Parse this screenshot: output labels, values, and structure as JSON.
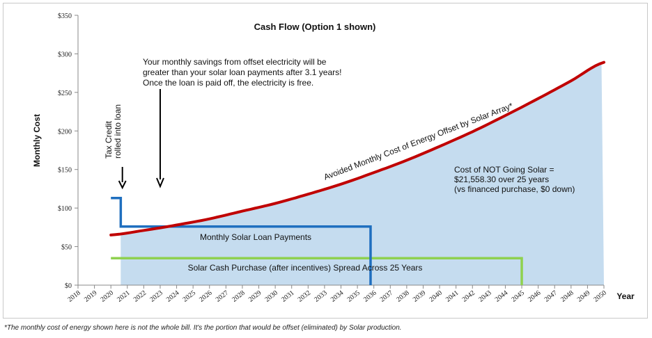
{
  "chart_data": {
    "type": "line",
    "title": "Cash Flow  (Option 1 shown)",
    "ylabel": "Monthly Cost",
    "xlabel": "Year",
    "ylim": [
      0,
      350
    ],
    "xlim": [
      2018,
      2050
    ],
    "y_ticks": [
      0,
      50,
      100,
      150,
      200,
      250,
      300,
      350
    ],
    "y_tick_labels": [
      "$0",
      "$50",
      "$100",
      "$150",
      "$200",
      "$250",
      "$300",
      "$350"
    ],
    "x_ticks": [
      "2018",
      "2019",
      "2020",
      "2021",
      "2022",
      "2023",
      "2024",
      "2025",
      "2026",
      "2027",
      "2028",
      "2029",
      "2030",
      "2031",
      "2032",
      "2033",
      "2034",
      "2035",
      "2036",
      "2037",
      "2038",
      "2039",
      "2040",
      "2041",
      "2042",
      "2043",
      "2044",
      "2045",
      "2046",
      "2047",
      "2048",
      "2049",
      "2050"
    ],
    "grid": false,
    "series": [
      {
        "name": "Avoided  Monthly Cost of Energy Offset by Solar Array*",
        "color": "#c00000",
        "x": [
          2020,
          2022,
          2024,
          2026,
          2028,
          2030,
          2032,
          2034,
          2036,
          2038,
          2040,
          2042,
          2044,
          2046,
          2048,
          2050
        ],
        "y": [
          65,
          71,
          78,
          86,
          96,
          106,
          118,
          131,
          146,
          162,
          180,
          199,
          220,
          242,
          265,
          289
        ]
      },
      {
        "name": "Monthly Solar Loan Payments",
        "color": "#1f6fbf",
        "x": [
          2020,
          2020.6,
          2020.6,
          2035.8,
          2035.8
        ],
        "y": [
          113,
          113,
          76,
          76,
          0
        ]
      },
      {
        "name": "Solar Cash Purchase (after incentives) Spread  Across 25 Years",
        "color": "#8fd14f",
        "x": [
          2020,
          2045,
          2045
        ],
        "y": [
          35,
          35,
          0
        ]
      }
    ],
    "shaded_area": {
      "color": "#c5dcef",
      "from_x": 2020.6,
      "to_x": 2050
    },
    "annotations": {
      "savings_note": [
        "Your monthly savings from offset electricity will be",
        "greater than your solar loan payments after 3.1 years!",
        "Once the loan is paid off, the electricity is free."
      ],
      "savings_arrow_x": 2023,
      "tax_credit": [
        "Tax Credit",
        "rolled into loan"
      ],
      "tax_credit_arrow_x": 2020.7,
      "cost_not_solar": [
        "Cost of NOT Going Solar =",
        "$21,558.30 over 25 years",
        "(vs financed purchase, $0 down)"
      ],
      "loan_label": "Monthly Solar Loan Payments",
      "cash_label": "Solar Cash Purchase (after incentives) Spread  Across 25 Years",
      "avoided_label": "Avoided  Monthly Cost of Energy Offset by Solar Array*"
    }
  },
  "footnote": "*The monthly cost of energy shown here is not the whole bill.  It's the portion that would be offset (eliminated) by Solar production."
}
